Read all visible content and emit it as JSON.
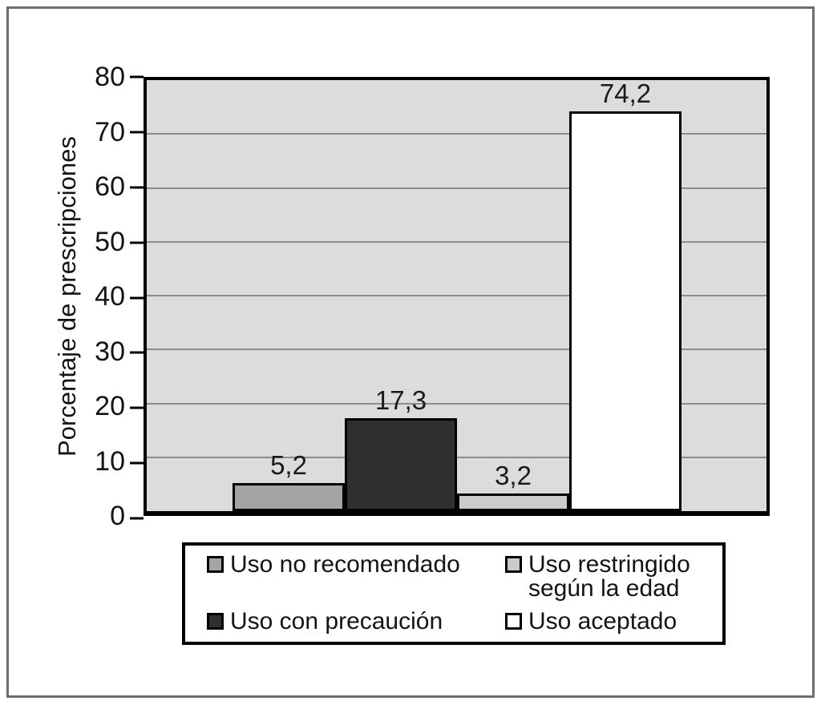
{
  "chart_data": {
    "type": "bar",
    "title": "",
    "xlabel": "",
    "ylabel": "Porcentaje de prescripciones",
    "ylim": [
      0,
      80
    ],
    "yticks": [
      0,
      10,
      20,
      30,
      40,
      50,
      60,
      70,
      80
    ],
    "grid": "horizontal",
    "plot_background": "#dcdcdc",
    "gridline_color": "#8c8c8c",
    "categories": [
      "Uso no recomendado",
      "Uso con precaución",
      "Uso restringido según la edad",
      "Uso aceptado"
    ],
    "values": [
      5.2,
      17.3,
      3.2,
      74.2
    ],
    "value_labels": [
      "5,2",
      "17,3",
      "3,2",
      "74,2"
    ],
    "bar_colors": [
      "#a4a4a4",
      "#2f2f2f",
      "#cbcbcb",
      "#ffffff"
    ],
    "legend_position": "bottom",
    "legend": {
      "items": [
        {
          "label": "Uso no recomendado",
          "color": "#a4a4a4"
        },
        {
          "label": "Uso restringido\nsegún la edad",
          "color": "#cbcbcb"
        },
        {
          "label": "Uso con precaución",
          "color": "#2f2f2f"
        },
        {
          "label": "Uso aceptado",
          "color": "#ffffff"
        }
      ]
    }
  }
}
